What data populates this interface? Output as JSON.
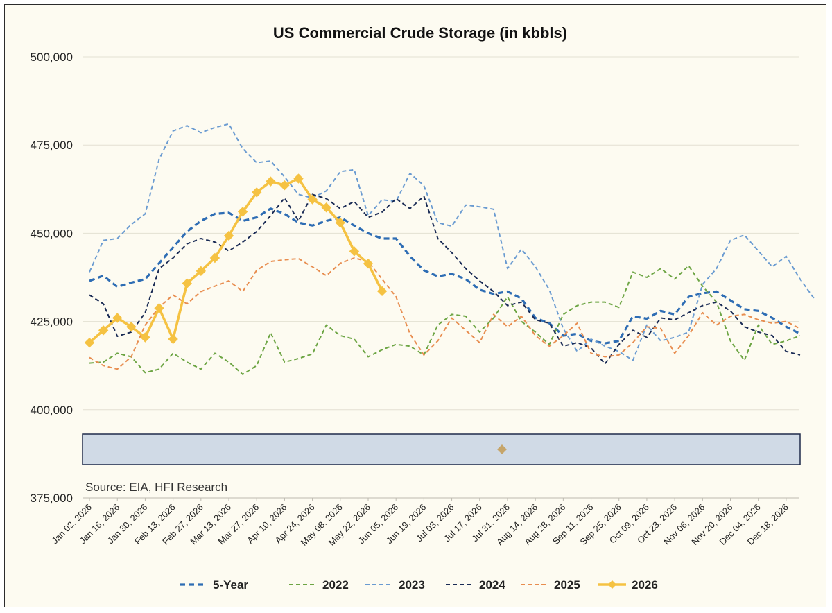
{
  "chart_data": {
    "type": "line",
    "title": "US Commercial Crude Storage (in kbbls)",
    "ylim": [
      375000,
      500000
    ],
    "yticks": [
      375000,
      400000,
      425000,
      450000,
      475000,
      500000
    ],
    "ytick_labels": [
      "375,000",
      "400,000",
      "425,000",
      "450,000",
      "475,000",
      "500,000"
    ],
    "xtick_labels": [
      "Jan 02, 2026",
      "Jan 16, 2026",
      "Jan 30, 2026",
      "Feb 13, 2026",
      "Feb 27, 2026",
      "Mar 13, 2026",
      "Mar 27, 2026",
      "Apr 10, 2026",
      "Apr 24, 2026",
      "May 08, 2026",
      "May 22, 2026",
      "Jun 05, 2026",
      "Jun 19, 2026",
      "Jul 03, 2026",
      "Jul 17, 2026",
      "Jul 31, 2026",
      "Aug 14, 2026",
      "Aug 28, 2026",
      "Sep 11, 2026",
      "Sep 25, 2026",
      "Oct 09, 2026",
      "Oct 23, 2026",
      "Nov 06, 2026",
      "Nov 20, 2026",
      "Dec 04, 2026",
      "Dec 18, 2026"
    ],
    "grid": true,
    "legend_position": "bottom",
    "source": "Source: EIA, HFI Research",
    "series": [
      {
        "name": "5-Year",
        "color": "#2e6db4",
        "dash": "dashed-thick",
        "values": [
          436500,
          438000,
          434800,
          436000,
          437000,
          441500,
          446000,
          450500,
          453500,
          455500,
          455800,
          453500,
          454500,
          457000,
          455500,
          453000,
          452200,
          453500,
          454500,
          452200,
          450000,
          448500,
          448500,
          443500,
          439500,
          437800,
          438500,
          437000,
          434000,
          432800,
          433500,
          431500,
          426000,
          424500,
          421000,
          421500,
          419500,
          418800,
          419500,
          426500,
          425800,
          428000,
          427000,
          432000,
          433000,
          433500,
          431000,
          428500,
          428000,
          426000,
          423500,
          421500
        ]
      },
      {
        "name": "2022",
        "color": "#6da544",
        "dash": "dashed",
        "values": [
          413200,
          413500,
          416000,
          415000,
          410500,
          411500,
          416000,
          413500,
          411500,
          416000,
          413500,
          410000,
          412500,
          421800,
          413500,
          414500,
          415800,
          424000,
          421000,
          420000,
          415000,
          417000,
          418500,
          418000,
          415500,
          424000,
          427000,
          426500,
          422000,
          426000,
          432000,
          425000,
          422000,
          418500,
          427000,
          429500,
          430500,
          430500,
          429000,
          439000,
          437500,
          440000,
          437000,
          440800,
          435000,
          430500,
          419500,
          414000,
          424000,
          418500,
          419500,
          421000
        ]
      },
      {
        "name": "2023",
        "color": "#6a9bd1",
        "dash": "dashed",
        "values": [
          439000,
          448000,
          448500,
          452500,
          455500,
          471000,
          479000,
          480500,
          478500,
          480000,
          481000,
          474000,
          470000,
          470500,
          466000,
          461000,
          460000,
          462000,
          467500,
          468000,
          455000,
          459500,
          459000,
          467000,
          463500,
          453000,
          452000,
          458000,
          457500,
          456800,
          440000,
          445500,
          440500,
          434000,
          423000,
          416500,
          420000,
          418000,
          416500,
          414000,
          424000,
          419500,
          420500,
          422000,
          435500,
          440000,
          448000,
          449500,
          445000,
          440500,
          443500,
          437000,
          431500
        ]
      },
      {
        "name": "2024",
        "color": "#1a2b55",
        "dash": "dashed",
        "values": [
          432500,
          430000,
          420800,
          422000,
          427500,
          440000,
          443000,
          447000,
          448500,
          447500,
          445000,
          447500,
          450500,
          455000,
          460000,
          453500,
          461000,
          459800,
          457000,
          459000,
          454500,
          456000,
          459800,
          457000,
          460500,
          448500,
          444500,
          440000,
          436500,
          433500,
          429500,
          430500,
          425500,
          424500,
          418000,
          419000,
          417500,
          413000,
          418500,
          422500,
          420500,
          426000,
          425500,
          427500,
          429500,
          430500,
          428000,
          423500,
          422000,
          421000,
          416500,
          415500
        ]
      },
      {
        "name": "2025",
        "color": "#e88d4f",
        "dash": "dashed",
        "values": [
          414800,
          412500,
          411500,
          415000,
          424000,
          429000,
          432500,
          430000,
          433500,
          435000,
          436500,
          433500,
          439500,
          442000,
          442500,
          442800,
          440500,
          438000,
          441500,
          443000,
          442000,
          437000,
          432000,
          421500,
          415500,
          419500,
          426000,
          422500,
          419000,
          427000,
          423500,
          426500,
          421000,
          418000,
          421000,
          424500,
          416000,
          415000,
          415500,
          419000,
          423500,
          423000,
          416000,
          421000,
          427500,
          424000,
          426500,
          427000,
          425500,
          424500,
          425000,
          423000
        ]
      },
      {
        "name": "2026",
        "color": "#f5c242",
        "dash": "solid-marker",
        "values": [
          419000,
          422500,
          426000,
          423500,
          420500,
          428800,
          420000,
          435800,
          439300,
          443000,
          449300,
          456100,
          461600,
          464700,
          463600,
          465500,
          459600,
          457300,
          453000,
          444900,
          441400,
          433600
        ]
      }
    ]
  }
}
